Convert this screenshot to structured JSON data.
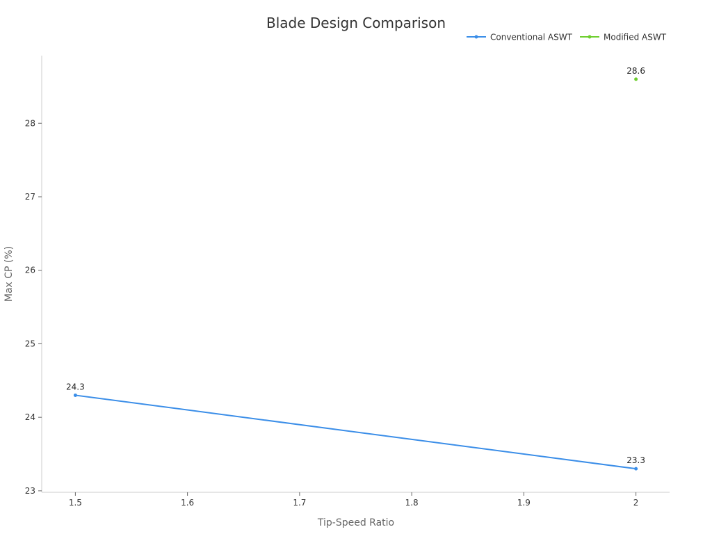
{
  "chart_data": {
    "type": "line",
    "title": "Blade Design Comparison",
    "xlabel": "Tip-Speed Ratio",
    "ylabel": "Max CP (%)",
    "xlim": [
      1.47,
      2.03
    ],
    "ylim": [
      22.98,
      28.92
    ],
    "x_ticks": [
      "1.5",
      "1.6",
      "1.7",
      "1.8",
      "1.9",
      "2"
    ],
    "y_ticks": [
      "23",
      "24",
      "25",
      "26",
      "27",
      "28"
    ],
    "grid": false,
    "legend_position": "top-right",
    "series": [
      {
        "name": "Conventional ASWT",
        "color": "#3b8ee8",
        "x": [
          1.5,
          2.0
        ],
        "values": [
          24.3,
          23.3
        ],
        "labels": [
          "24.3",
          "23.3"
        ]
      },
      {
        "name": "Modified ASWT",
        "color": "#6ecf2f",
        "x": [
          2.0
        ],
        "values": [
          28.6
        ],
        "labels": [
          "28.6"
        ]
      }
    ]
  }
}
